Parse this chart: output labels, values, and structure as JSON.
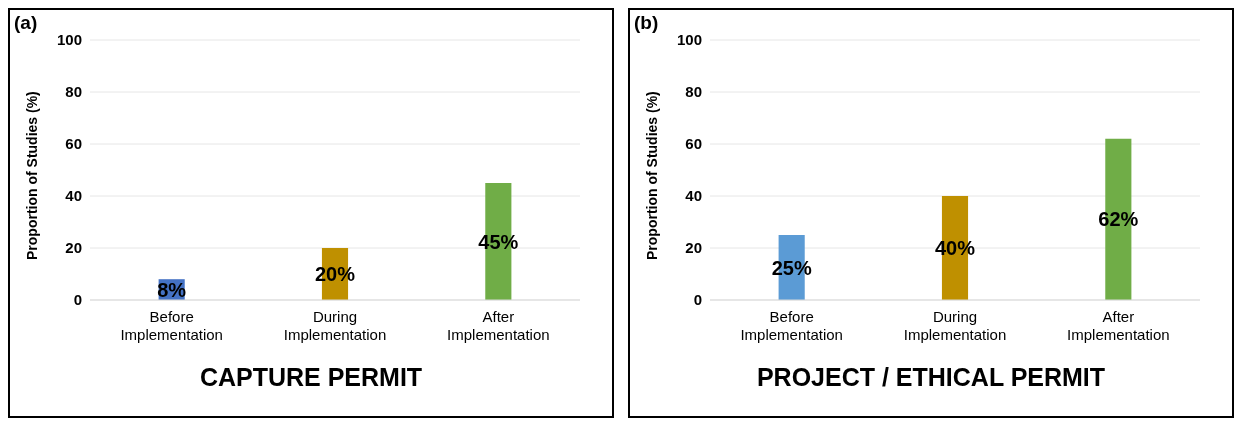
{
  "chart_data": [
    {
      "type": "bar",
      "title": "CAPTURE PERMIT",
      "annotations": [
        "(a)"
      ],
      "ylabel": "Proportion of Studies (%)",
      "categories": [
        "Before Implementation",
        "During Implementation",
        "After Implementation"
      ],
      "values": [
        8,
        20,
        45
      ],
      "colors": [
        "#4472c4",
        "#bf9000",
        "#70ad47"
      ],
      "value_labels": [
        "8%",
        "20%",
        "45%"
      ],
      "ylim": [
        0,
        100
      ],
      "yticks": [
        0,
        20,
        40,
        60,
        80,
        100
      ],
      "grid": "y",
      "legend": false
    },
    {
      "type": "bar",
      "title": "PROJECT / ETHICAL PERMIT",
      "annotations": [
        "(b)"
      ],
      "ylabel": "Proportion of Studies (%)",
      "categories": [
        "Before Implementation",
        "During Implementation",
        "After Implementation"
      ],
      "values": [
        25,
        40,
        62
      ],
      "colors": [
        "#5b9bd5",
        "#bf9000",
        "#70ad47"
      ],
      "value_labels": [
        "25%",
        "40%",
        "62%"
      ],
      "ylim": [
        0,
        100
      ],
      "yticks": [
        0,
        20,
        40,
        60,
        80,
        100
      ],
      "grid": "y",
      "legend": false
    }
  ]
}
